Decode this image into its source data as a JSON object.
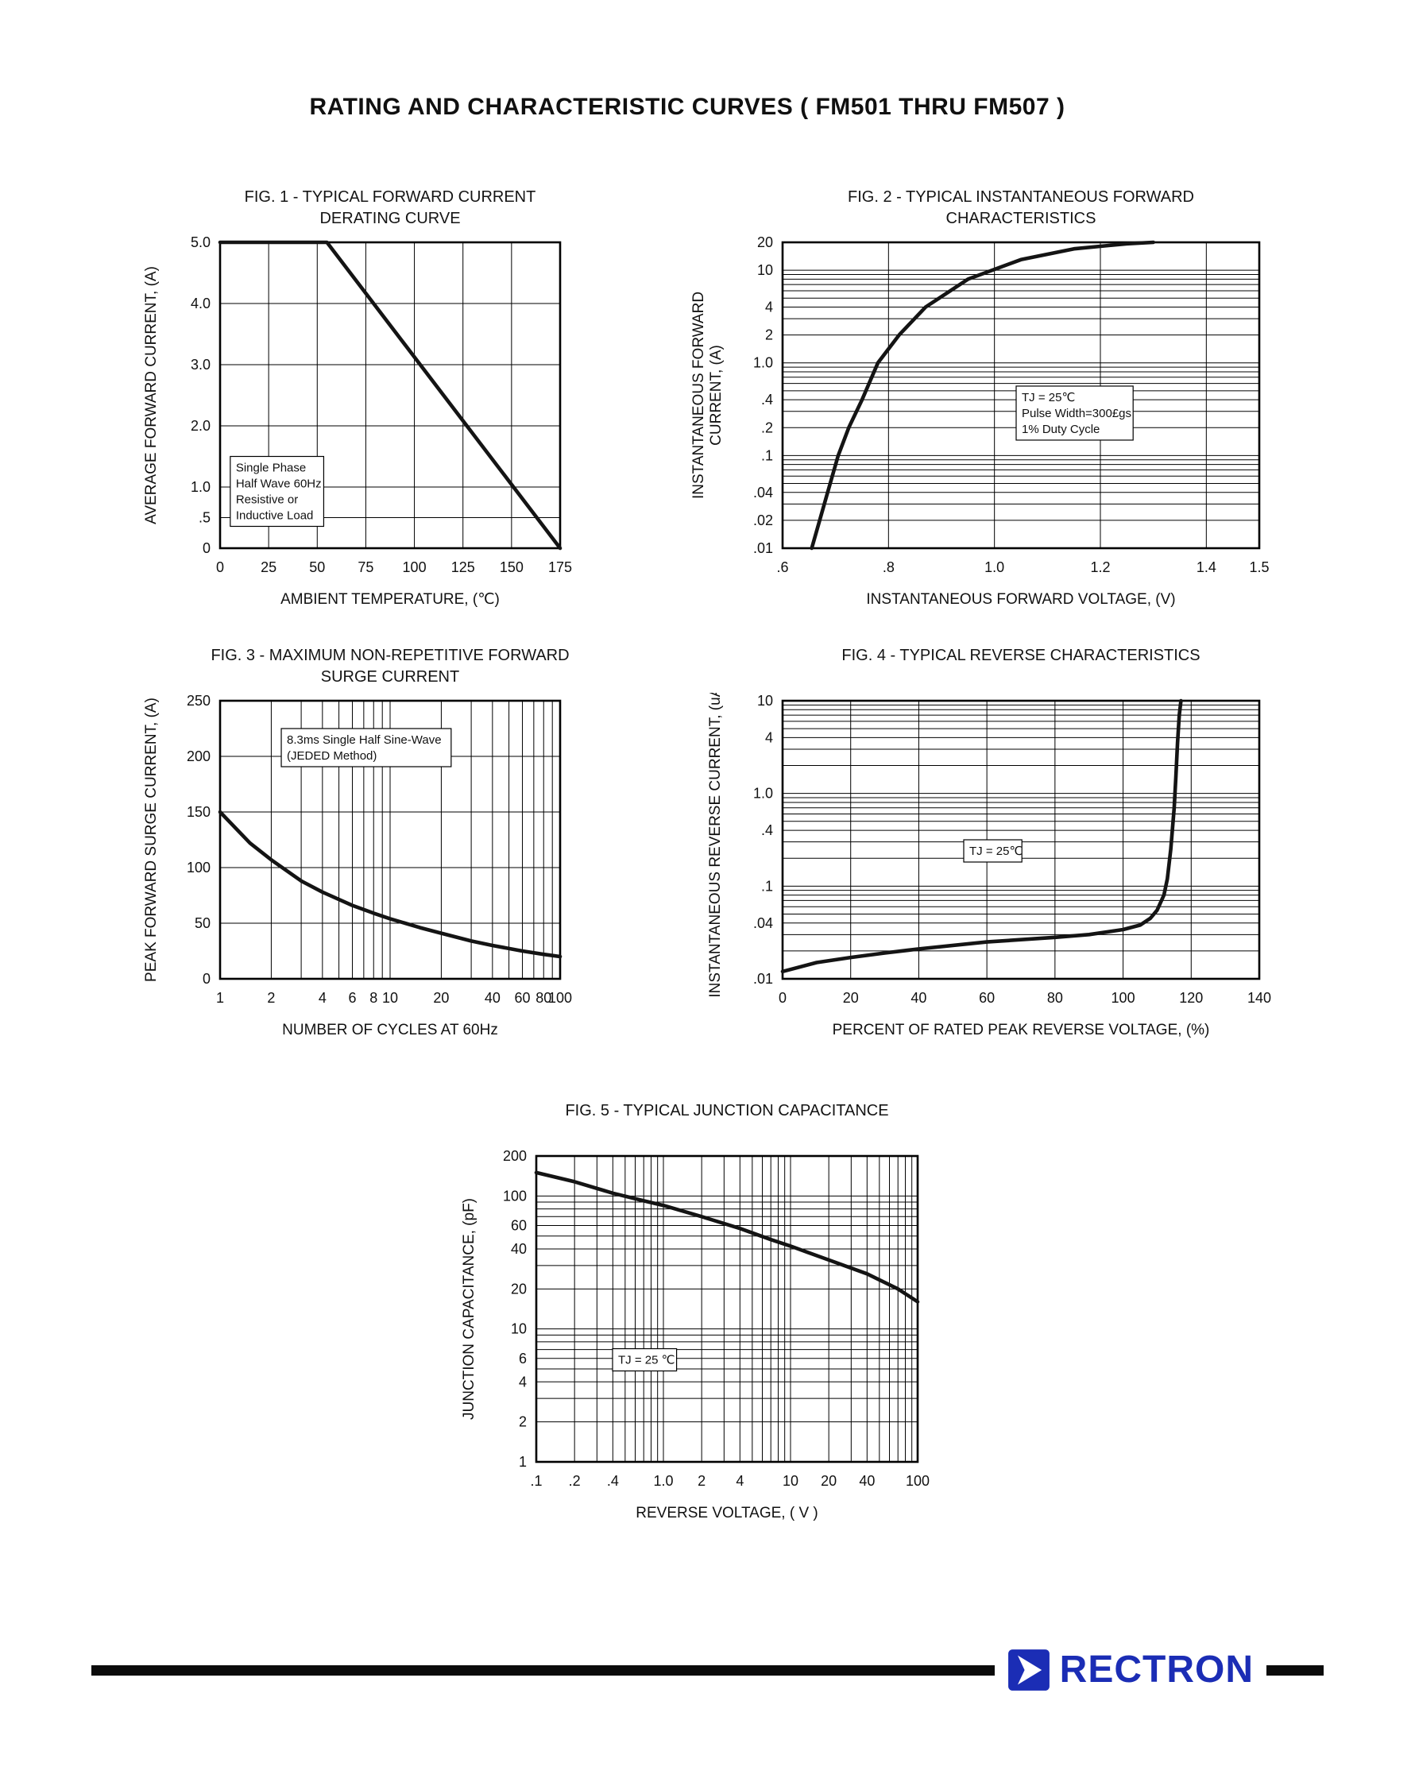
{
  "page": {
    "title": "RATING AND CHARACTERISTIC CURVES ( FM501 THRU FM507 )"
  },
  "footer": {
    "brand": "RECTRON",
    "accent_color": "#1b2db5",
    "rule_color": "#0b0b0b"
  },
  "chart_data": [
    {
      "type": "line",
      "title": "FIG. 1 - TYPICAL FORWARD CURRENT\nDERATING CURVE",
      "xlabel": "AMBIENT TEMPERATURE, (℃)",
      "ylabel": "AVERAGE FORWARD  CURRENT, (A)",
      "x": {
        "scale": "linear",
        "min": 0,
        "max": 175,
        "ticks": [
          {
            "v": 0,
            "t": "0"
          },
          {
            "v": 25,
            "t": "25"
          },
          {
            "v": 50,
            "t": "50"
          },
          {
            "v": 75,
            "t": "75"
          },
          {
            "v": 100,
            "t": "100"
          },
          {
            "v": 125,
            "t": "125"
          },
          {
            "v": 150,
            "t": "150"
          },
          {
            "v": 175,
            "t": "175"
          }
        ]
      },
      "y": {
        "scale": "linear",
        "min": 0,
        "max": 5,
        "ticks": [
          {
            "v": 5,
            "t": "5.0"
          },
          {
            "v": 4,
            "t": "4.0"
          },
          {
            "v": 3,
            "t": "3.0"
          },
          {
            "v": 2,
            "t": "2.0"
          },
          {
            "v": 1,
            "t": "1.0"
          },
          {
            "v": 0.5,
            "t": ".5"
          },
          {
            "v": 0,
            "t": "0"
          }
        ]
      },
      "series": [
        {
          "name": "forward-current-derating",
          "points": [
            [
              0,
              5
            ],
            [
              55,
              5
            ],
            [
              175,
              0
            ]
          ]
        }
      ],
      "annotation": {
        "text": "Single Phase\nHalf Wave 60Hz\nResistive or\nInductive Load",
        "fx": 0.03,
        "fy": 0.7
      }
    },
    {
      "type": "line",
      "title": "FIG. 2 - TYPICAL INSTANTANEOUS FORWARD\nCHARACTERISTICS",
      "xlabel": "INSTANTANEOUS FORWARD VOLTAGE, (V)",
      "ylabel": "INSTANTANEOUS FORWARD\nCURRENT, (A)",
      "x": {
        "scale": "linear",
        "min": 0.6,
        "max": 1.5,
        "ticks": [
          {
            "v": 0.6,
            "t": ".6"
          },
          {
            "v": 0.8,
            "t": ".8"
          },
          {
            "v": 1.0,
            "t": "1.0"
          },
          {
            "v": 1.2,
            "t": "1.2"
          },
          {
            "v": 1.4,
            "t": "1.4"
          },
          {
            "v": 1.5,
            "t": "1.5"
          }
        ]
      },
      "y": {
        "scale": "log",
        "min": 0.01,
        "max": 20,
        "ticks": [
          {
            "v": 20,
            "t": "20"
          },
          {
            "v": 10,
            "t": "10"
          },
          {
            "v": 4,
            "t": "4"
          },
          {
            "v": 2,
            "t": "2"
          },
          {
            "v": 1,
            "t": "1.0"
          },
          {
            "v": 0.4,
            "t": ".4"
          },
          {
            "v": 0.2,
            "t": ".2"
          },
          {
            "v": 0.1,
            "t": ".1"
          },
          {
            "v": 0.04,
            "t": ".04"
          },
          {
            "v": 0.02,
            "t": ".02"
          },
          {
            "v": 0.01,
            "t": ".01"
          }
        ]
      },
      "series": [
        {
          "name": "instantaneous-forward-current",
          "points": [
            [
              0.655,
              0.01
            ],
            [
              0.67,
              0.02
            ],
            [
              0.685,
              0.04
            ],
            [
              0.705,
              0.1
            ],
            [
              0.725,
              0.2
            ],
            [
              0.75,
              0.4
            ],
            [
              0.78,
              1.0
            ],
            [
              0.82,
              2
            ],
            [
              0.87,
              4
            ],
            [
              0.95,
              8
            ],
            [
              1.05,
              13
            ],
            [
              1.15,
              17
            ],
            [
              1.25,
              19.3
            ],
            [
              1.3,
              20
            ]
          ]
        }
      ],
      "annotation": {
        "text": "TJ = 25℃\nPulse Width=300£gs\n1% Duty Cycle",
        "fx": 0.49,
        "fy": 0.47
      }
    },
    {
      "type": "line",
      "title": "FIG. 3 - MAXIMUM NON-REPETITIVE FORWARD\nSURGE CURRENT",
      "xlabel": "NUMBER OF CYCLES AT 60Hz",
      "ylabel": "PEAK FORWARD SURGE CURRENT, (A)",
      "x": {
        "scale": "log",
        "min": 1,
        "max": 100,
        "ticks": [
          {
            "v": 1,
            "t": "1"
          },
          {
            "v": 2,
            "t": "2"
          },
          {
            "v": 4,
            "t": "4"
          },
          {
            "v": 6,
            "t": "6"
          },
          {
            "v": 8,
            "t": "8"
          },
          {
            "v": 10,
            "t": "10"
          },
          {
            "v": 20,
            "t": "20"
          },
          {
            "v": 40,
            "t": "40"
          },
          {
            "v": 60,
            "t": "60"
          },
          {
            "v": 80,
            "t": "80"
          },
          {
            "v": 100,
            "t": "100"
          }
        ]
      },
      "y": {
        "scale": "linear",
        "min": 0,
        "max": 250,
        "ticks": [
          {
            "v": 250,
            "t": "250"
          },
          {
            "v": 200,
            "t": "200"
          },
          {
            "v": 150,
            "t": "150"
          },
          {
            "v": 100,
            "t": "100"
          },
          {
            "v": 50,
            "t": "50"
          },
          {
            "v": 0,
            "t": "0"
          }
        ]
      },
      "series": [
        {
          "name": "peak-surge-current",
          "points": [
            [
              1,
              150
            ],
            [
              1.5,
              122
            ],
            [
              2,
              107
            ],
            [
              3,
              88
            ],
            [
              4,
              78
            ],
            [
              6,
              66
            ],
            [
              8,
              59
            ],
            [
              10,
              54
            ],
            [
              15,
              46
            ],
            [
              20,
              41
            ],
            [
              30,
              34
            ],
            [
              40,
              30
            ],
            [
              60,
              25
            ],
            [
              80,
              22
            ],
            [
              100,
              20
            ]
          ]
        }
      ],
      "annotation": {
        "text": "8.3ms Single Half Sine-Wave\n(JEDED Method)",
        "fx": 0.18,
        "fy": 0.1
      }
    },
    {
      "type": "line",
      "title": "FIG. 4 - TYPICAL REVERSE CHARACTERISTICS",
      "xlabel": "PERCENT OF RATED PEAK REVERSE VOLTAGE, (%)",
      "ylabel": "INSTANTANEOUS REVERSE CURRENT, (uA)",
      "x": {
        "scale": "linear",
        "min": 0,
        "max": 140,
        "ticks": [
          {
            "v": 0,
            "t": "0"
          },
          {
            "v": 20,
            "t": "20"
          },
          {
            "v": 40,
            "t": "40"
          },
          {
            "v": 60,
            "t": "60"
          },
          {
            "v": 80,
            "t": "80"
          },
          {
            "v": 100,
            "t": "100"
          },
          {
            "v": 120,
            "t": "120"
          },
          {
            "v": 140,
            "t": "140"
          }
        ]
      },
      "y": {
        "scale": "log",
        "min": 0.01,
        "max": 10,
        "ticks": [
          {
            "v": 10,
            "t": "10"
          },
          {
            "v": 4,
            "t": "4"
          },
          {
            "v": 1,
            "t": "1.0"
          },
          {
            "v": 0.4,
            "t": ".4"
          },
          {
            "v": 0.1,
            "t": ".1"
          },
          {
            "v": 0.04,
            "t": ".04"
          },
          {
            "v": 0.01,
            "t": ".01"
          }
        ]
      },
      "series": [
        {
          "name": "reverse-leakage-current",
          "points": [
            [
              0,
              0.012
            ],
            [
              10,
              0.015
            ],
            [
              20,
              0.017
            ],
            [
              30,
              0.019
            ],
            [
              40,
              0.021
            ],
            [
              60,
              0.025
            ],
            [
              80,
              0.028
            ],
            [
              90,
              0.03
            ],
            [
              100,
              0.034
            ],
            [
              105,
              0.038
            ],
            [
              108,
              0.045
            ],
            [
              110,
              0.055
            ],
            [
              112,
              0.08
            ],
            [
              113,
              0.12
            ],
            [
              114,
              0.25
            ],
            [
              115,
              0.7
            ],
            [
              115.5,
              1.5
            ],
            [
              116,
              3.5
            ],
            [
              116.5,
              7
            ],
            [
              117,
              10
            ]
          ]
        }
      ],
      "annotation": {
        "text": "TJ = 25℃",
        "fx": 0.38,
        "fy": 0.5
      }
    },
    {
      "type": "line",
      "title": "FIG. 5 - TYPICAL JUNCTION CAPACITANCE",
      "xlabel": "REVERSE VOLTAGE, ( V )",
      "ylabel": "JUNCTION CAPACITANCE, (pF)",
      "x": {
        "scale": "log",
        "min": 0.1,
        "max": 100,
        "ticks": [
          {
            "v": 0.1,
            "t": ".1"
          },
          {
            "v": 0.2,
            "t": ".2"
          },
          {
            "v": 0.4,
            "t": ".4"
          },
          {
            "v": 1,
            "t": "1.0"
          },
          {
            "v": 2,
            "t": "2"
          },
          {
            "v": 4,
            "t": "4"
          },
          {
            "v": 10,
            "t": "10"
          },
          {
            "v": 20,
            "t": "20"
          },
          {
            "v": 40,
            "t": "40"
          },
          {
            "v": 100,
            "t": "100"
          }
        ]
      },
      "y": {
        "scale": "log",
        "min": 1,
        "max": 200,
        "ticks": [
          {
            "v": 200,
            "t": "200"
          },
          {
            "v": 100,
            "t": "100"
          },
          {
            "v": 60,
            "t": "60"
          },
          {
            "v": 40,
            "t": "40"
          },
          {
            "v": 20,
            "t": "20"
          },
          {
            "v": 10,
            "t": "10"
          },
          {
            "v": 6,
            "t": "6"
          },
          {
            "v": 4,
            "t": "4"
          },
          {
            "v": 2,
            "t": "2"
          },
          {
            "v": 1,
            "t": "1"
          }
        ]
      },
      "series": [
        {
          "name": "junction-capacitance",
          "points": [
            [
              0.1,
              150
            ],
            [
              0.2,
              128
            ],
            [
              0.4,
              105
            ],
            [
              0.7,
              92
            ],
            [
              1,
              85
            ],
            [
              2,
              70
            ],
            [
              4,
              57
            ],
            [
              7,
              47
            ],
            [
              10,
              42
            ],
            [
              20,
              33
            ],
            [
              40,
              26
            ],
            [
              70,
              20
            ],
            [
              100,
              16
            ]
          ]
        }
      ],
      "annotation": {
        "text": "TJ = 25 ℃",
        "fx": 0.2,
        "fy": 0.63
      }
    }
  ]
}
